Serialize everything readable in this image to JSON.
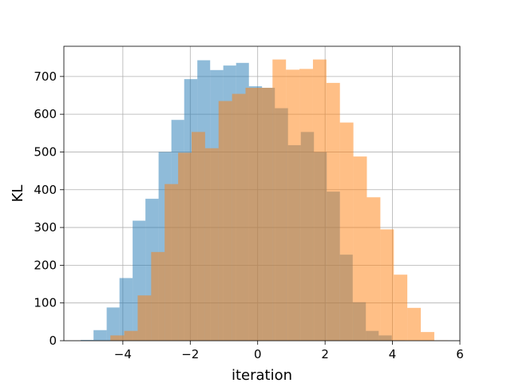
{
  "chart_data": {
    "type": "bar",
    "xlabel": "iteration",
    "ylabel": "KL",
    "xlim": [
      -5.75,
      6.0
    ],
    "ylim": [
      0,
      780
    ],
    "xticks": [
      -4,
      -2,
      0,
      2,
      4,
      6
    ],
    "xtick_labels": [
      "−4",
      "−2",
      "0",
      "2",
      "4",
      "6"
    ],
    "yticks": [
      0,
      100,
      200,
      300,
      400,
      500,
      600,
      700
    ],
    "ytick_labels": [
      "0",
      "100",
      "200",
      "300",
      "400",
      "500",
      "600",
      "700"
    ],
    "grid": true,
    "legend": null,
    "series": [
      {
        "color": "#1f77b4",
        "opacity": 0.5,
        "bins": [
          {
            "x0": -5.25,
            "x1": -4.87,
            "y": 2
          },
          {
            "x0": -4.87,
            "x1": -4.48,
            "y": 28
          },
          {
            "x0": -4.48,
            "x1": -4.1,
            "y": 88
          },
          {
            "x0": -4.1,
            "x1": -3.71,
            "y": 166
          },
          {
            "x0": -3.71,
            "x1": -3.33,
            "y": 318
          },
          {
            "x0": -3.33,
            "x1": -2.94,
            "y": 376
          },
          {
            "x0": -2.94,
            "x1": -2.56,
            "y": 500
          },
          {
            "x0": -2.56,
            "x1": -2.18,
            "y": 585
          },
          {
            "x0": -2.18,
            "x1": -1.79,
            "y": 693
          },
          {
            "x0": -1.79,
            "x1": -1.41,
            "y": 743
          },
          {
            "x0": -1.41,
            "x1": -1.02,
            "y": 717
          },
          {
            "x0": -1.02,
            "x1": -0.64,
            "y": 729
          },
          {
            "x0": -0.64,
            "x1": -0.26,
            "y": 736
          },
          {
            "x0": -0.26,
            "x1": 0.13,
            "y": 674
          },
          {
            "x0": 0.13,
            "x1": 0.51,
            "y": 670
          },
          {
            "x0": 0.51,
            "x1": 0.9,
            "y": 616
          },
          {
            "x0": 0.9,
            "x1": 1.28,
            "y": 518
          },
          {
            "x0": 1.28,
            "x1": 1.67,
            "y": 553
          },
          {
            "x0": 1.67,
            "x1": 2.05,
            "y": 500
          },
          {
            "x0": 2.05,
            "x1": 2.44,
            "y": 395
          },
          {
            "x0": 2.44,
            "x1": 2.82,
            "y": 228
          },
          {
            "x0": 2.82,
            "x1": 3.21,
            "y": 102
          },
          {
            "x0": 3.21,
            "x1": 3.59,
            "y": 26
          },
          {
            "x0": 3.59,
            "x1": 3.98,
            "y": 14
          },
          {
            "x0": 3.98,
            "x1": 4.36,
            "y": 1
          }
        ]
      },
      {
        "color": "#ff7f0e",
        "opacity": 0.5,
        "bins": [
          {
            "x0": -4.37,
            "x1": -3.96,
            "y": 14
          },
          {
            "x0": -3.96,
            "x1": -3.56,
            "y": 26
          },
          {
            "x0": -3.56,
            "x1": -3.16,
            "y": 120
          },
          {
            "x0": -3.16,
            "x1": -2.76,
            "y": 235
          },
          {
            "x0": -2.76,
            "x1": -2.36,
            "y": 415
          },
          {
            "x0": -2.36,
            "x1": -1.96,
            "y": 498
          },
          {
            "x0": -1.96,
            "x1": -1.56,
            "y": 553
          },
          {
            "x0": -1.56,
            "x1": -1.16,
            "y": 510
          },
          {
            "x0": -1.16,
            "x1": -0.76,
            "y": 635
          },
          {
            "x0": -0.76,
            "x1": -0.36,
            "y": 654
          },
          {
            "x0": -0.36,
            "x1": 0.04,
            "y": 670
          },
          {
            "x0": 0.04,
            "x1": 0.44,
            "y": 670
          },
          {
            "x0": 0.44,
            "x1": 0.84,
            "y": 745
          },
          {
            "x0": 0.84,
            "x1": 1.24,
            "y": 718
          },
          {
            "x0": 1.24,
            "x1": 1.64,
            "y": 720
          },
          {
            "x0": 1.64,
            "x1": 2.04,
            "y": 745
          },
          {
            "x0": 2.04,
            "x1": 2.44,
            "y": 683
          },
          {
            "x0": 2.44,
            "x1": 2.84,
            "y": 578
          },
          {
            "x0": 2.84,
            "x1": 3.24,
            "y": 488
          },
          {
            "x0": 3.24,
            "x1": 3.64,
            "y": 380
          },
          {
            "x0": 3.64,
            "x1": 4.04,
            "y": 295
          },
          {
            "x0": 4.04,
            "x1": 4.44,
            "y": 175
          },
          {
            "x0": 4.44,
            "x1": 4.84,
            "y": 87
          },
          {
            "x0": 4.84,
            "x1": 5.24,
            "y": 23
          },
          {
            "x0": 5.24,
            "x1": 5.64,
            "y": 1
          }
        ]
      }
    ]
  }
}
